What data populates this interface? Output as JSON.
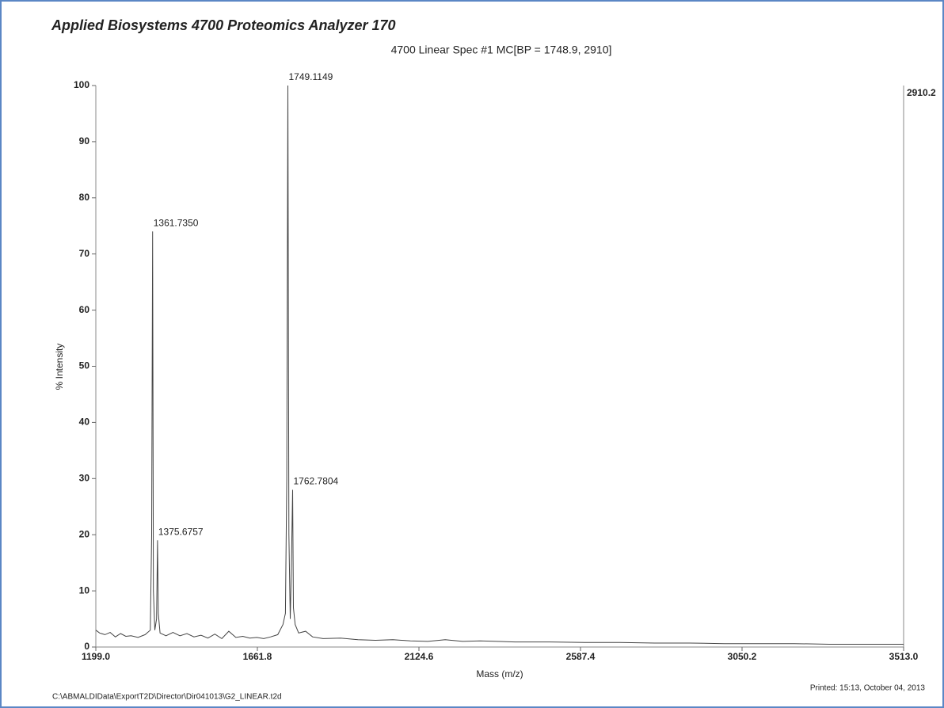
{
  "chart_data": {
    "type": "line",
    "title": "Applied Biosystems 4700 Proteomics Analyzer 170",
    "subtitle": "4700 Linear Spec #1 MC[BP = 1748.9, 2910]",
    "x_label": "Mass (m/z)",
    "y_label": "% Intensity",
    "max_intensity_label": "2910.2",
    "footer_left": "C:\\ABMALDIData\\ExportT2D\\Director\\Dir041013\\G2_LINEAR.t2d",
    "footer_right": "Printed: 15:13, October 04, 2013",
    "color": "#444444",
    "xlim": [
      1199,
      3513
    ],
    "ylim": [
      0,
      100
    ],
    "xticks": [
      {
        "value": 1199,
        "label": "1199.0"
      },
      1661.8,
      2124.6,
      2587.4,
      3050.2,
      {
        "value": 3513,
        "label": "3513.0"
      }
    ],
    "yticks": [
      0,
      10,
      20,
      30,
      40,
      50,
      60,
      70,
      80,
      90,
      100
    ],
    "x": [
      1199,
      1210,
      1225,
      1240,
      1255,
      1270,
      1285,
      1300,
      1320,
      1340,
      1355,
      1359,
      1361.735,
      1364,
      1368,
      1373,
      1375.6757,
      1378,
      1383,
      1400,
      1420,
      1440,
      1460,
      1480,
      1500,
      1520,
      1540,
      1560,
      1580,
      1600,
      1620,
      1640,
      1660,
      1680,
      1700,
      1720,
      1735,
      1742,
      1746,
      1749.1149,
      1752,
      1756,
      1759,
      1762.7804,
      1765,
      1770,
      1780,
      1800,
      1820,
      1850,
      1900,
      1950,
      2000,
      2050,
      2100,
      2150,
      2200,
      2250,
      2300,
      2400,
      2500,
      2600,
      2700,
      2800,
      2900,
      3000,
      3100,
      3200,
      3300,
      3400,
      3513
    ],
    "values": [
      3,
      2.5,
      2.2,
      2.6,
      1.8,
      2.4,
      1.9,
      2.0,
      1.7,
      2.2,
      3,
      20,
      74,
      10,
      3,
      5,
      19,
      6,
      2.5,
      2,
      2.6,
      2.0,
      2.4,
      1.8,
      2.1,
      1.6,
      2.3,
      1.5,
      2.8,
      1.7,
      1.9,
      1.6,
      1.7,
      1.5,
      1.8,
      2.2,
      4,
      6,
      30,
      100,
      20,
      5,
      13,
      28,
      7,
      4,
      2.5,
      2.8,
      1.8,
      1.5,
      1.6,
      1.3,
      1.2,
      1.3,
      1.1,
      1.0,
      1.3,
      1.0,
      1.1,
      0.9,
      0.9,
      0.8,
      0.8,
      0.7,
      0.7,
      0.6,
      0.6,
      0.6,
      0.5,
      0.5,
      0.5
    ],
    "peak_labels": [
      {
        "x": 1361.735,
        "y": 74,
        "label": "1361.7350"
      },
      {
        "x": 1375.6757,
        "y": 19,
        "label": "1375.6757"
      },
      {
        "x": 1749.1149,
        "y": 100,
        "label": "1749.1149"
      },
      {
        "x": 1762.7804,
        "y": 28,
        "label": "1762.7804"
      }
    ]
  }
}
